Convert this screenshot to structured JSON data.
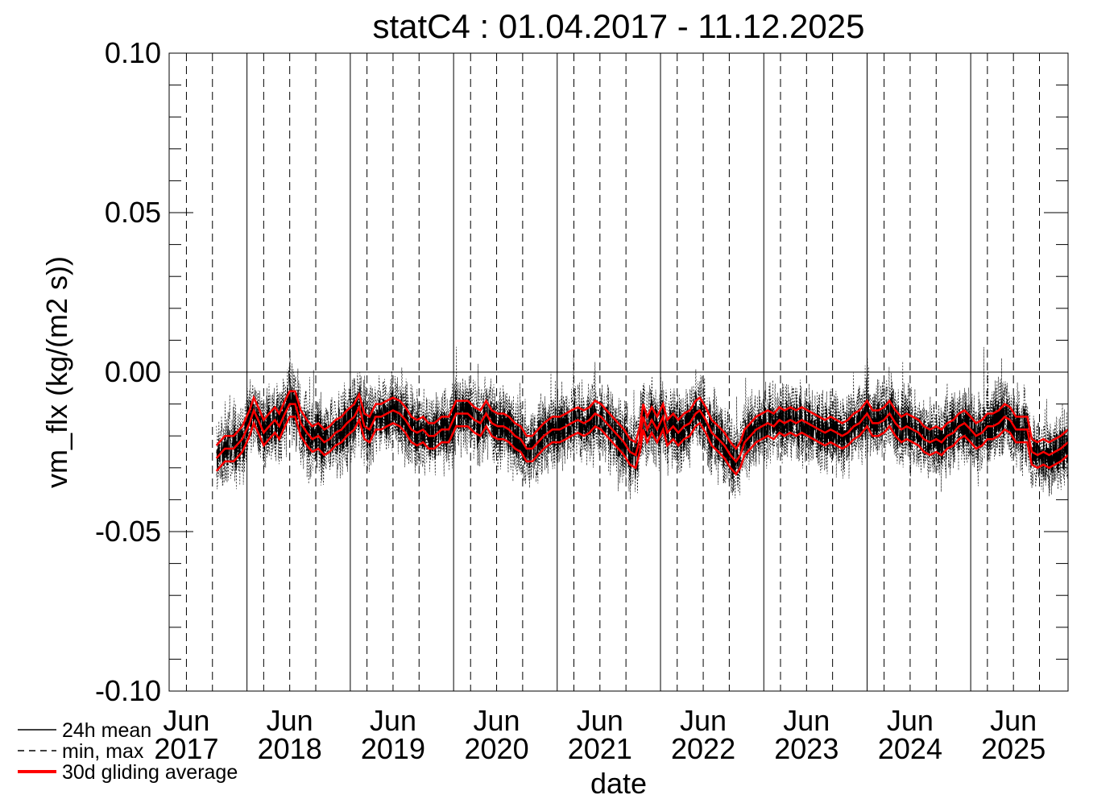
{
  "chart_data": {
    "type": "line",
    "title": "statC4 : 01.04.2017 - 11.12.2025",
    "xlabel": "date",
    "ylabel": "vm_flx (kg/(m2 s))",
    "ylim": [
      -0.1,
      0.1
    ],
    "yticks": [
      "0.10",
      "0.05",
      "0.00",
      "-0.05",
      "-0.10"
    ],
    "xlim": [
      "2017-04-01",
      "2025-12-11"
    ],
    "xtick_labels": [
      {
        "month": "Jun",
        "year": "2017",
        "date": "2017-06-01"
      },
      {
        "month": "Jun",
        "year": "2018",
        "date": "2018-06-01"
      },
      {
        "month": "Jun",
        "year": "2019",
        "date": "2019-06-01"
      },
      {
        "month": "Jun",
        "year": "2020",
        "date": "2020-06-01"
      },
      {
        "month": "Jun",
        "year": "2021",
        "date": "2021-06-01"
      },
      {
        "month": "Jun",
        "year": "2022",
        "date": "2022-06-01"
      },
      {
        "month": "Jun",
        "year": "2023",
        "date": "2023-06-01"
      },
      {
        "month": "Jun",
        "year": "2024",
        "date": "2024-06-01"
      },
      {
        "month": "Jun",
        "year": "2025",
        "date": "2025-06-01"
      }
    ],
    "solid_gridlines_dates": [
      "2018-01-01",
      "2019-01-01",
      "2020-01-01",
      "2021-01-01",
      "2022-01-01",
      "2023-01-01",
      "2024-01-01",
      "2025-01-01"
    ],
    "dashed_gridlines_dates": [
      "2017-06-01",
      "2017-09-01",
      "2018-03-01",
      "2018-06-01",
      "2018-09-01",
      "2019-03-01",
      "2019-06-01",
      "2019-09-01",
      "2020-03-01",
      "2020-06-01",
      "2020-09-01",
      "2021-03-01",
      "2021-06-01",
      "2021-09-01",
      "2022-03-01",
      "2022-06-01",
      "2022-09-01",
      "2023-03-01",
      "2023-06-01",
      "2023-09-01",
      "2024-03-01",
      "2024-06-01",
      "2024-09-01",
      "2025-03-01",
      "2025-06-01",
      "2025-09-01"
    ],
    "zero_line": 0.0,
    "legend_position": "bottom-left",
    "legend": [
      {
        "label": "24h mean",
        "style": "solid",
        "color": "#000000"
      },
      {
        "label": "min, max",
        "style": "dashed",
        "color": "#000000"
      },
      {
        "label": "30d gliding average",
        "style": "solid-thick",
        "color": "#ff0000"
      }
    ],
    "data_start": "2017-09-15",
    "series": [
      {
        "name": "30d gliding average",
        "role": "mean",
        "color": "#ff0000",
        "points": [
          [
            "2017-09-15",
            -0.027
          ],
          [
            "2017-10-15",
            -0.024
          ],
          [
            "2017-11-15",
            -0.024
          ],
          [
            "2017-12-15",
            -0.021
          ],
          [
            "2018-01-10",
            -0.016
          ],
          [
            "2018-01-25",
            -0.012
          ],
          [
            "2018-02-15",
            -0.016
          ],
          [
            "2018-03-01",
            -0.019
          ],
          [
            "2018-03-20",
            -0.017
          ],
          [
            "2018-04-10",
            -0.015
          ],
          [
            "2018-04-25",
            -0.017
          ],
          [
            "2018-05-15",
            -0.013
          ],
          [
            "2018-06-01",
            -0.01
          ],
          [
            "2018-06-20",
            -0.01
          ],
          [
            "2018-07-10",
            -0.016
          ],
          [
            "2018-08-01",
            -0.019
          ],
          [
            "2018-08-20",
            -0.021
          ],
          [
            "2018-09-10",
            -0.02
          ],
          [
            "2018-10-01",
            -0.022
          ],
          [
            "2018-10-20",
            -0.021
          ],
          [
            "2018-11-10",
            -0.019
          ],
          [
            "2018-12-01",
            -0.018
          ],
          [
            "2018-12-20",
            -0.016
          ],
          [
            "2019-01-15",
            -0.014
          ],
          [
            "2019-02-01",
            -0.011
          ],
          [
            "2019-02-20",
            -0.017
          ],
          [
            "2019-03-10",
            -0.018
          ],
          [
            "2019-04-01",
            -0.014
          ],
          [
            "2019-04-20",
            -0.014
          ],
          [
            "2019-05-10",
            -0.013
          ],
          [
            "2019-06-01",
            -0.012
          ],
          [
            "2019-06-25",
            -0.013
          ],
          [
            "2019-07-15",
            -0.015
          ],
          [
            "2019-08-05",
            -0.018
          ],
          [
            "2019-08-25",
            -0.019
          ],
          [
            "2019-09-15",
            -0.018
          ],
          [
            "2019-10-05",
            -0.02
          ],
          [
            "2019-10-25",
            -0.02
          ],
          [
            "2019-11-20",
            -0.018
          ],
          [
            "2019-12-15",
            -0.018
          ],
          [
            "2020-01-10",
            -0.013
          ],
          [
            "2020-02-01",
            -0.013
          ],
          [
            "2020-02-20",
            -0.013
          ],
          [
            "2020-03-15",
            -0.015
          ],
          [
            "2020-04-05",
            -0.016
          ],
          [
            "2020-04-25",
            -0.013
          ],
          [
            "2020-05-15",
            -0.016
          ],
          [
            "2020-06-05",
            -0.017
          ],
          [
            "2020-06-25",
            -0.017
          ],
          [
            "2020-07-15",
            -0.018
          ],
          [
            "2020-08-05",
            -0.02
          ],
          [
            "2020-08-25",
            -0.021
          ],
          [
            "2020-09-15",
            -0.024
          ],
          [
            "2020-10-05",
            -0.024
          ],
          [
            "2020-10-25",
            -0.022
          ],
          [
            "2020-11-15",
            -0.02
          ],
          [
            "2020-12-15",
            -0.018
          ],
          [
            "2021-01-10",
            -0.018
          ],
          [
            "2021-02-01",
            -0.017
          ],
          [
            "2021-02-20",
            -0.016
          ],
          [
            "2021-03-15",
            -0.015
          ],
          [
            "2021-04-05",
            -0.016
          ],
          [
            "2021-04-25",
            -0.015
          ],
          [
            "2021-05-15",
            -0.013
          ],
          [
            "2021-06-05",
            -0.014
          ],
          [
            "2021-06-25",
            -0.016
          ],
          [
            "2021-07-15",
            -0.018
          ],
          [
            "2021-08-05",
            -0.02
          ],
          [
            "2021-08-25",
            -0.022
          ],
          [
            "2021-09-15",
            -0.025
          ],
          [
            "2021-10-05",
            -0.026
          ],
          [
            "2021-10-20",
            -0.021
          ],
          [
            "2021-11-01",
            -0.014
          ],
          [
            "2021-11-15",
            -0.018
          ],
          [
            "2021-12-01",
            -0.015
          ],
          [
            "2021-12-20",
            -0.018
          ],
          [
            "2022-01-10",
            -0.014
          ],
          [
            "2022-01-25",
            -0.019
          ],
          [
            "2022-02-15",
            -0.017
          ],
          [
            "2022-03-05",
            -0.019
          ],
          [
            "2022-03-25",
            -0.017
          ],
          [
            "2022-04-15",
            -0.016
          ],
          [
            "2022-05-05",
            -0.013
          ],
          [
            "2022-05-20",
            -0.012
          ],
          [
            "2022-06-10",
            -0.015
          ],
          [
            "2022-07-01",
            -0.019
          ],
          [
            "2022-07-25",
            -0.021
          ],
          [
            "2022-08-15",
            -0.023
          ],
          [
            "2022-09-05",
            -0.026
          ],
          [
            "2022-09-25",
            -0.028
          ],
          [
            "2022-10-10",
            -0.026
          ],
          [
            "2022-10-25",
            -0.022
          ],
          [
            "2022-11-15",
            -0.02
          ],
          [
            "2022-12-05",
            -0.018
          ],
          [
            "2022-12-25",
            -0.017
          ],
          [
            "2023-01-15",
            -0.016
          ],
          [
            "2023-02-05",
            -0.017
          ],
          [
            "2023-02-25",
            -0.015
          ],
          [
            "2023-03-15",
            -0.016
          ],
          [
            "2023-04-05",
            -0.015
          ],
          [
            "2023-04-25",
            -0.016
          ],
          [
            "2023-05-15",
            -0.015
          ],
          [
            "2023-06-05",
            -0.016
          ],
          [
            "2023-06-25",
            -0.017
          ],
          [
            "2023-07-15",
            -0.018
          ],
          [
            "2023-08-05",
            -0.019
          ],
          [
            "2023-08-25",
            -0.018
          ],
          [
            "2023-09-15",
            -0.019
          ],
          [
            "2023-10-05",
            -0.02
          ],
          [
            "2023-10-25",
            -0.019
          ],
          [
            "2023-11-15",
            -0.017
          ],
          [
            "2023-12-05",
            -0.016
          ],
          [
            "2024-01-01",
            -0.013
          ],
          [
            "2024-01-20",
            -0.016
          ],
          [
            "2024-02-10",
            -0.016
          ],
          [
            "2024-03-01",
            -0.015
          ],
          [
            "2024-03-20",
            -0.013
          ],
          [
            "2024-04-10",
            -0.016
          ],
          [
            "2024-05-01",
            -0.018
          ],
          [
            "2024-05-20",
            -0.017
          ],
          [
            "2024-06-10",
            -0.018
          ],
          [
            "2024-07-01",
            -0.019
          ],
          [
            "2024-07-20",
            -0.021
          ],
          [
            "2024-08-10",
            -0.022
          ],
          [
            "2024-09-01",
            -0.021
          ],
          [
            "2024-09-20",
            -0.022
          ],
          [
            "2024-10-10",
            -0.02
          ],
          [
            "2024-11-01",
            -0.019
          ],
          [
            "2024-11-20",
            -0.017
          ],
          [
            "2024-12-10",
            -0.016
          ],
          [
            "2025-01-01",
            -0.018
          ],
          [
            "2025-01-20",
            -0.02
          ],
          [
            "2025-02-10",
            -0.019
          ],
          [
            "2025-03-01",
            -0.017
          ],
          [
            "2025-03-20",
            -0.017
          ],
          [
            "2025-04-10",
            -0.016
          ],
          [
            "2025-05-01",
            -0.014
          ],
          [
            "2025-05-20",
            -0.015
          ],
          [
            "2025-06-10",
            -0.018
          ],
          [
            "2025-07-01",
            -0.018
          ],
          [
            "2025-07-20",
            -0.018
          ],
          [
            "2025-08-05",
            -0.025
          ],
          [
            "2025-08-25",
            -0.026
          ],
          [
            "2025-09-15",
            -0.025
          ],
          [
            "2025-10-05",
            -0.026
          ],
          [
            "2025-10-25",
            -0.025
          ],
          [
            "2025-11-15",
            -0.024
          ],
          [
            "2025-12-11",
            -0.022
          ]
        ]
      },
      {
        "name": "24h mean",
        "role": "daily",
        "color": "#000000",
        "spread_around_mean": 0.006
      },
      {
        "name": "min, max",
        "role": "extremes",
        "color": "#000000",
        "spread_around_mean": 0.011
      }
    ],
    "band_offsets": 0.004
  }
}
